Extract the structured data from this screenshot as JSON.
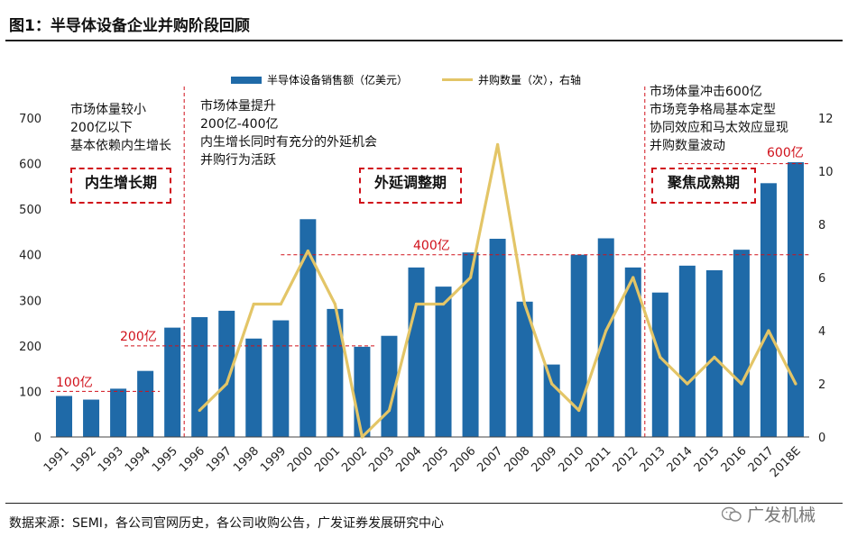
{
  "title": "图1：半导体设备企业并购阶段回顾",
  "source": "数据来源：SEMI，各公司官网历史，各公司收购公告，广发证券发展研究中心",
  "watermark": "广发机械",
  "colors": {
    "bar": "#1f6aa8",
    "line": "#e3c567",
    "accent": "#d0101a"
  },
  "annotations": {
    "phase1_text": [
      "市场体量较小",
      "200亿以下",
      "基本依赖内生增长"
    ],
    "phase2_text": [
      "市场体量提升",
      "200亿-400亿",
      "内生增长同时有充分的外延机会",
      "并购行为活跃"
    ],
    "phase3_text": [
      "市场体量冲击600亿",
      "市场竞争格局基本定型",
      "协同效应和马太效应显现",
      "并购数量波动"
    ],
    "phase1_box": "内生增长期",
    "phase2_box": "外延调整期",
    "phase3_box": "聚焦成熟期",
    "level_100": "100亿",
    "level_200": "200亿",
    "level_400": "400亿",
    "level_600": "600亿"
  },
  "chart_data": {
    "type": "bar",
    "categories": [
      "1991",
      "1992",
      "1993",
      "1994",
      "1995",
      "1996",
      "1997",
      "1998",
      "1999",
      "2000",
      "2001",
      "2002",
      "2003",
      "2004",
      "2005",
      "2006",
      "2007",
      "2008",
      "2009",
      "2010",
      "2011",
      "2012",
      "2013",
      "2014",
      "2015",
      "2016",
      "2017",
      "2018E"
    ],
    "series": [
      {
        "name": "半导体设备销售额（亿美元）",
        "type": "bar",
        "axis": "left",
        "values": [
          90,
          82,
          106,
          145,
          240,
          263,
          277,
          216,
          256,
          478,
          281,
          198,
          222,
          372,
          330,
          405,
          435,
          297,
          159,
          400,
          436,
          372,
          317,
          376,
          366,
          411,
          557,
          603
        ]
      },
      {
        "name": "并购数量（次），右轴",
        "type": "line",
        "axis": "right",
        "values": [
          null,
          null,
          null,
          null,
          null,
          1,
          2,
          5,
          5,
          7,
          5,
          0,
          1,
          5,
          5,
          6,
          11,
          5,
          2,
          1,
          4,
          6,
          3,
          2,
          3,
          2,
          4,
          2
        ]
      }
    ],
    "left_axis": {
      "min": 0,
      "max": 700,
      "ticks": [
        0,
        100,
        200,
        300,
        400,
        500,
        600,
        700
      ]
    },
    "right_axis": {
      "min": 0,
      "max": 12,
      "ticks": [
        0,
        2,
        4,
        6,
        8,
        10,
        12
      ]
    },
    "reference_lines": [
      {
        "value": 100,
        "label": "100亿"
      },
      {
        "value": 200,
        "label": "200亿"
      },
      {
        "value": 400,
        "label": "400亿"
      },
      {
        "value": 600,
        "label": "600亿"
      }
    ],
    "phase_dividers": [
      "1995-1996",
      "2012-2013"
    ],
    "legend": "top",
    "grid": false
  }
}
